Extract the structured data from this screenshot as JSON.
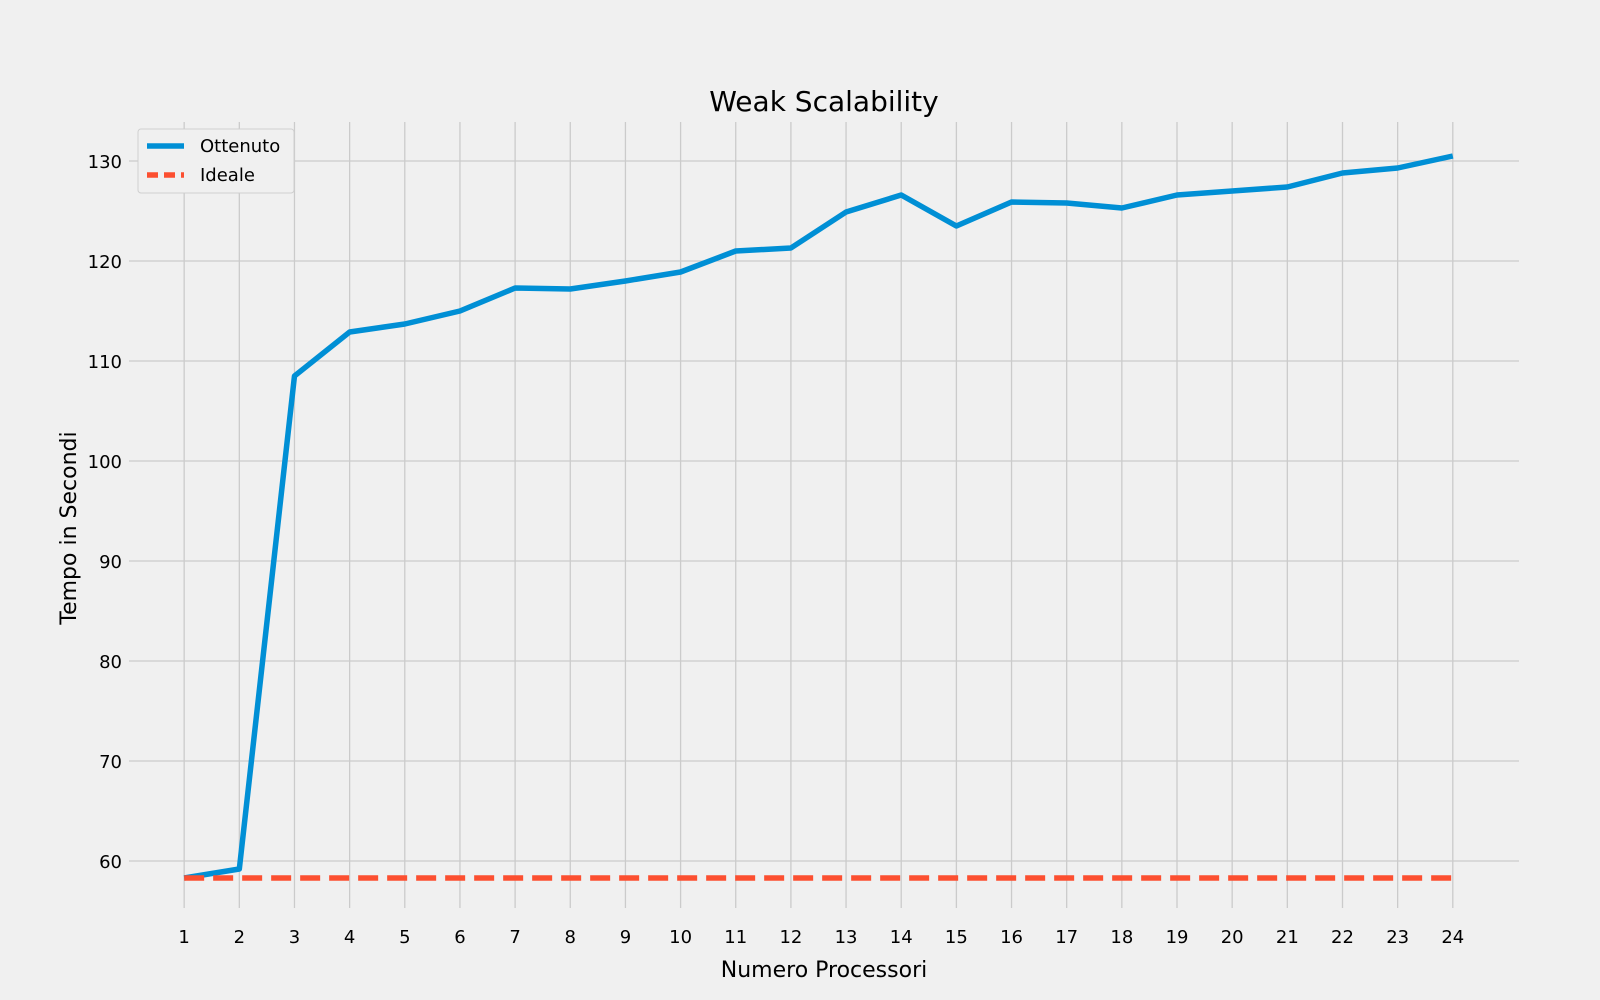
{
  "chart_data": {
    "type": "line",
    "title": "Weak Scalability",
    "xlabel": "Numero Processori",
    "ylabel": "Tempo in Secondi",
    "x": [
      1,
      2,
      3,
      4,
      5,
      6,
      7,
      8,
      9,
      10,
      11,
      12,
      13,
      14,
      15,
      16,
      17,
      18,
      19,
      20,
      21,
      22,
      23,
      24
    ],
    "xlim": [
      0,
      25.2
    ],
    "ylim": [
      55.3,
      133.9
    ],
    "yticks": [
      60,
      70,
      80,
      90,
      100,
      110,
      120,
      130
    ],
    "grid": true,
    "legend_position": "top-left",
    "series": [
      {
        "name": "Ottenuto",
        "color": "#008fd5",
        "style": "solid",
        "values": [
          58.3,
          59.2,
          108.5,
          112.9,
          113.7,
          115.0,
          117.3,
          117.2,
          118.0,
          118.9,
          121.0,
          121.3,
          124.9,
          126.6,
          123.5,
          125.9,
          125.8,
          125.3,
          126.6,
          127.0,
          127.4,
          128.8,
          129.3,
          130.5
        ]
      },
      {
        "name": "Ideale",
        "color": "#fc4f30",
        "style": "dashed",
        "values": [
          58.3,
          58.3,
          58.3,
          58.3,
          58.3,
          58.3,
          58.3,
          58.3,
          58.3,
          58.3,
          58.3,
          58.3,
          58.3,
          58.3,
          58.3,
          58.3,
          58.3,
          58.3,
          58.3,
          58.3,
          58.3,
          58.3,
          58.3,
          58.3
        ]
      }
    ]
  }
}
